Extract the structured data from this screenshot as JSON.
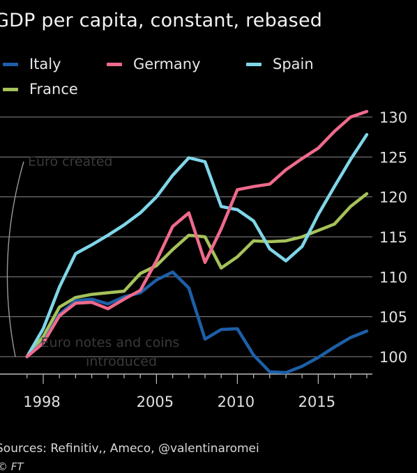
{
  "title": "GDP per capita, constant, rebased",
  "legend": [
    {
      "name": "Italy",
      "color": "#1d5fa8"
    },
    {
      "name": "Germany",
      "color": "#ef6a8c"
    },
    {
      "name": "Spain",
      "color": "#7fd6e8"
    },
    {
      "name": "France",
      "color": "#a6c25a"
    }
  ],
  "annotations": {
    "euro_created": "Euro created",
    "euro_notes": "Euro notes and coins",
    "euro_notes_2": "introduced"
  },
  "source": "Sources: Refinitiv,, Ameco, @valentinaromei",
  "credit": "© FT",
  "chart_data": {
    "type": "line",
    "title": "GDP per capita, constant, rebased",
    "xlabel": "",
    "ylabel": "",
    "xlim": [
      1998,
      2018
    ],
    "ylim": [
      98,
      131
    ],
    "x_ticks": [
      1998,
      2005,
      2010,
      2015
    ],
    "y_ticks": [
      100,
      105,
      110,
      115,
      120,
      125,
      130
    ],
    "grid": true,
    "legend_position": "top",
    "x": [
      1997,
      1998,
      1999,
      2000,
      2001,
      2002,
      2003,
      2004,
      2005,
      2006,
      2007,
      2008,
      2009,
      2010,
      2011,
      2012,
      2013,
      2014,
      2015,
      2016,
      2017,
      2018
    ],
    "series": [
      {
        "name": "Italy",
        "color": "#1d5fa8",
        "values": [
          100,
          101.8,
          105.3,
          107.0,
          107.2,
          106.6,
          107.5,
          108.0,
          109.6,
          110.6,
          108.6,
          102.2,
          103.4,
          103.5,
          100.2,
          98.1,
          98.0,
          98.8,
          99.9,
          101.2,
          102.4,
          103.2
        ]
      },
      {
        "name": "Germany",
        "color": "#ef6a8c",
        "values": [
          100,
          101.7,
          105.1,
          106.7,
          106.8,
          106.0,
          107.2,
          108.3,
          112.0,
          116.3,
          118.0,
          111.8,
          116.0,
          120.9,
          121.3,
          121.6,
          123.4,
          124.8,
          126.1,
          128.2,
          130.0,
          130.7
        ]
      },
      {
        "name": "Spain",
        "color": "#7fd6e8",
        "values": [
          100,
          103.5,
          108.7,
          112.9,
          114.0,
          115.2,
          116.5,
          118.0,
          120.0,
          122.7,
          124.9,
          124.4,
          118.8,
          118.4,
          117.0,
          113.5,
          112.0,
          113.8,
          117.8,
          121.3,
          124.7,
          127.8
        ]
      },
      {
        "name": "France",
        "color": "#a6c25a",
        "values": [
          100,
          102.5,
          106.2,
          107.4,
          107.8,
          108.0,
          108.2,
          110.4,
          111.4,
          113.4,
          115.2,
          115.0,
          111.1,
          112.5,
          114.5,
          114.4,
          114.5,
          115.0,
          115.8,
          116.6,
          118.8,
          120.4
        ]
      }
    ]
  }
}
